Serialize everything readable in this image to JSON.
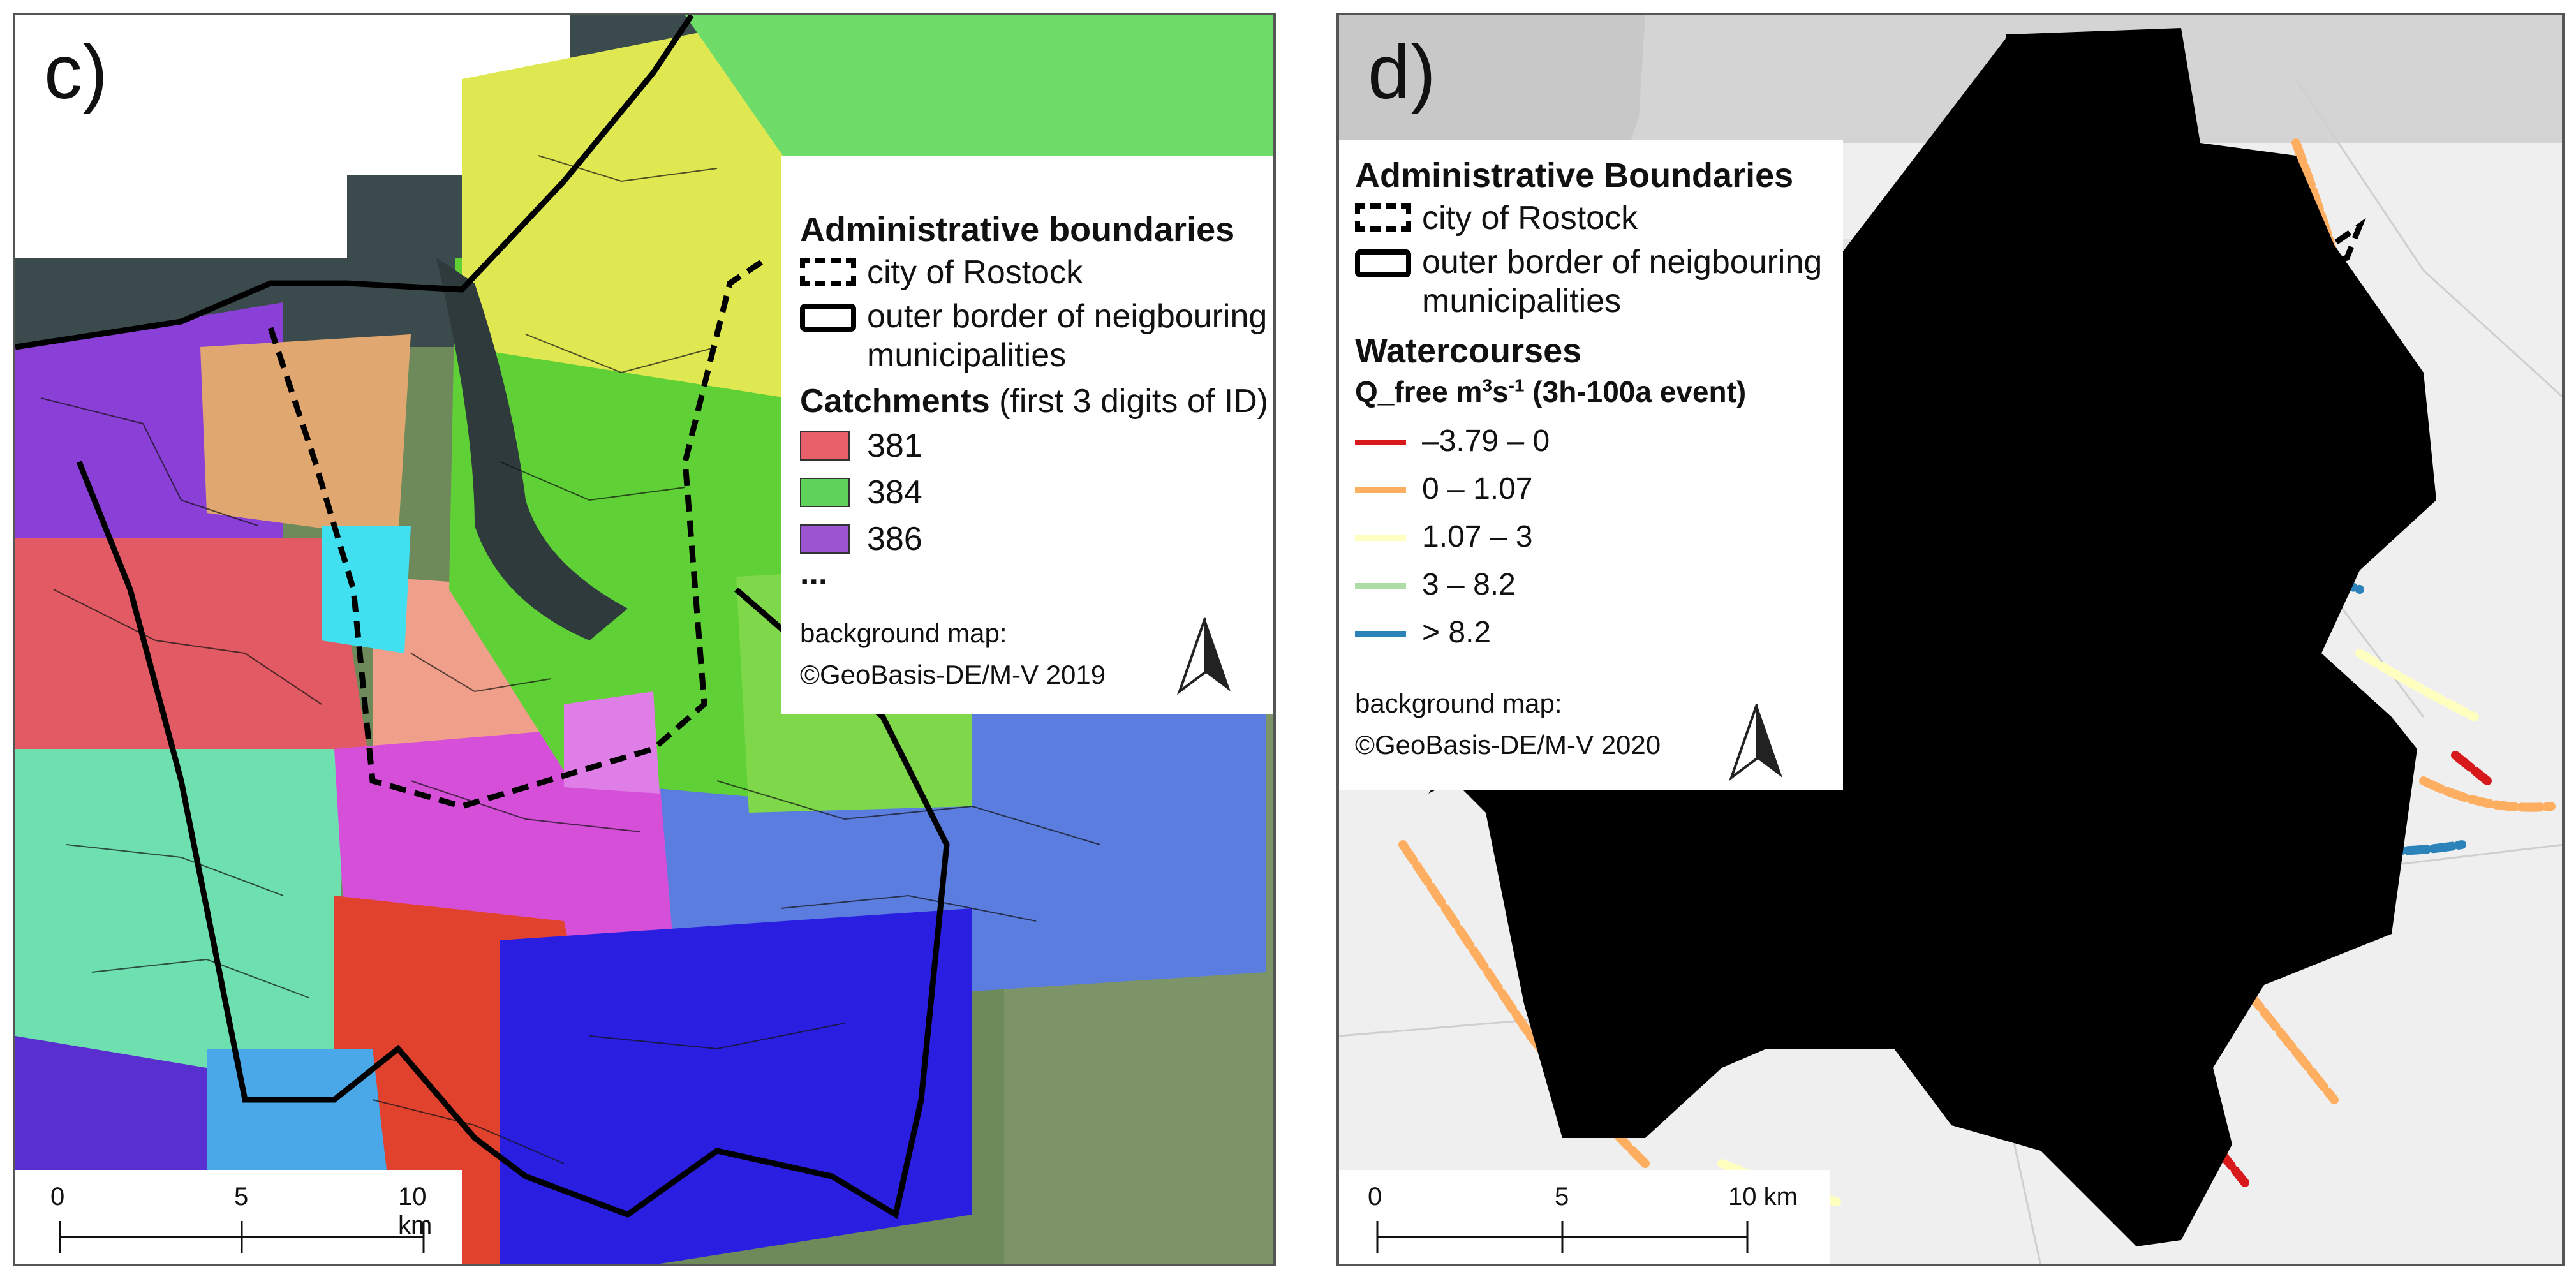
{
  "panel_c": {
    "label": "c)",
    "legend": {
      "admin_heading": "Administrative boundaries",
      "city_label": "city of Rostock",
      "outer_label_line1": "outer border of neigbouring",
      "outer_label_line2": "municipalities",
      "catch_heading_bold": "Catchments",
      "catch_heading_rest": " (first 3 digits of ID)",
      "catchments": [
        {
          "id": "381",
          "color": "#e8606a"
        },
        {
          "id": "384",
          "color": "#5fd35a"
        },
        {
          "id": "386",
          "color": "#9b55d0"
        }
      ],
      "ellipsis": "...",
      "bg_line1": "background map:",
      "bg_line2": "©GeoBasis-DE/M-V 2019"
    },
    "scale": {
      "t0": "0",
      "t5": "5",
      "t10": "10 km"
    }
  },
  "panel_d": {
    "label": "d)",
    "legend": {
      "admin_heading": "Administrative Boundaries",
      "city_label": "city of Rostock",
      "outer_label_line1": "outer border of neigbouring",
      "outer_label_line2": "municipalities",
      "water_heading": "Watercourses",
      "q_heading_a": "Q_free m",
      "q_heading_sup1": "3",
      "q_heading_b": "s",
      "q_heading_sup2": "-1",
      "q_heading_c": " (3h-100a event)",
      "classes": [
        {
          "range": "–3.79 – 0",
          "color": "#d7191c"
        },
        {
          "range": "0 – 1.07",
          "color": "#fdae61"
        },
        {
          "range": "1.07 – 3",
          "color": "#ffffbf"
        },
        {
          "range": "3 – 8.2",
          "color": "#abdda4"
        },
        {
          "range": "> 8.2",
          "color": "#2b83ba"
        }
      ],
      "bg_line1": "background map:",
      "bg_line2": "©GeoBasis-DE/M-V 2020"
    },
    "scale": {
      "t0": "0",
      "t5": "5",
      "t10": "10 km"
    }
  }
}
